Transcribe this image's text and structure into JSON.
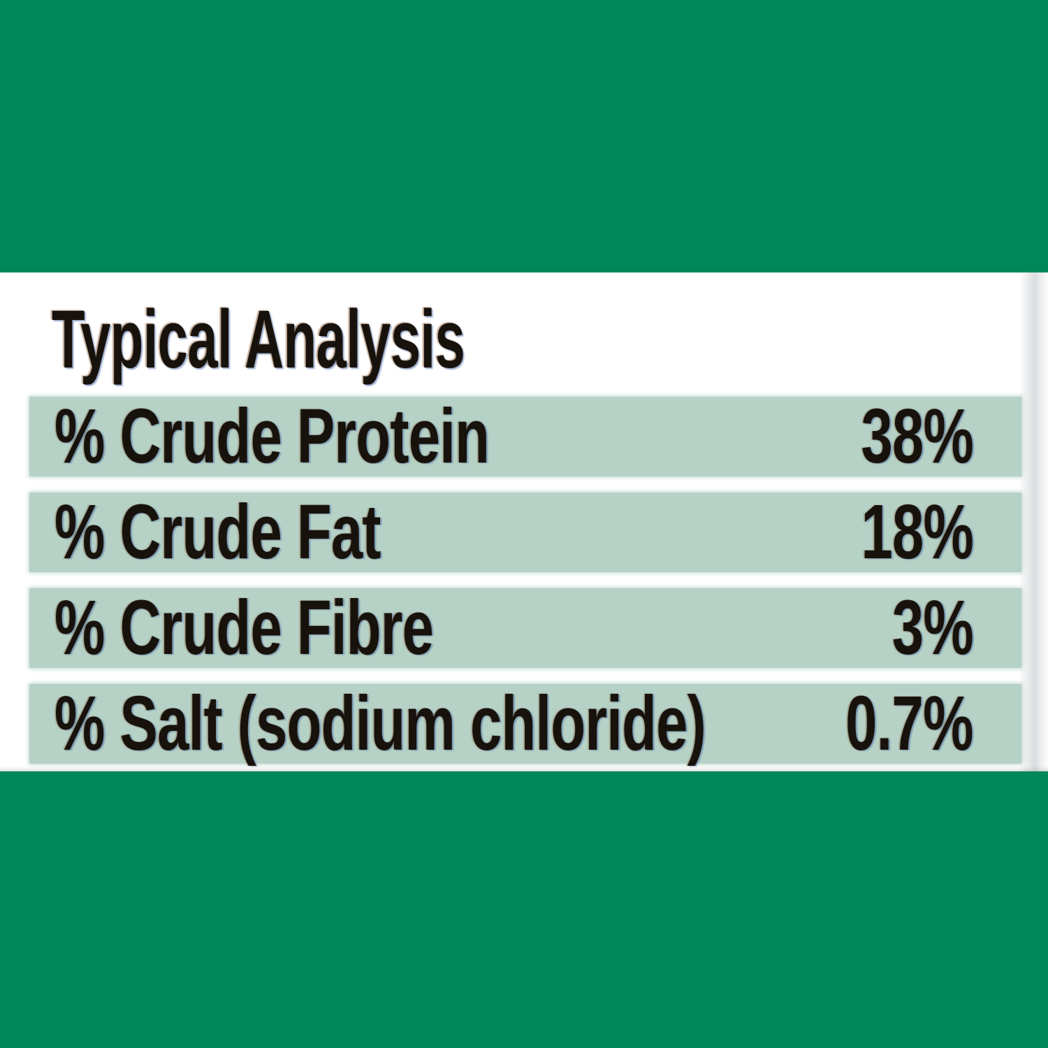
{
  "colors": {
    "background_green": "#008759",
    "panel_background": "#FFFFFF",
    "row_stripe_green": "#B6D2C7",
    "text_color": "#18120D"
  },
  "panel": {
    "title": "Typical Analysis",
    "rows": [
      {
        "label": "% Crude Protein",
        "value": "38%"
      },
      {
        "label": "% Crude Fat",
        "value": "18%"
      },
      {
        "label": "% Crude Fibre",
        "value": "3%"
      },
      {
        "label": "% Salt (sodium chloride)",
        "value": "0.7%"
      }
    ]
  }
}
